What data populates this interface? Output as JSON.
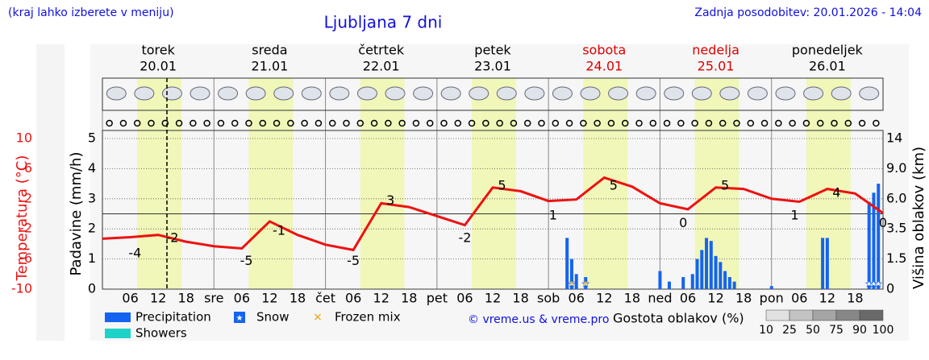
{
  "header": {
    "hint": "(kraj lahko izberete v meniju)",
    "title": "Ljubljana 7 dni",
    "updated": "Zadnja posodobitev: 20.01.2026 - 14:04"
  },
  "chart_data": {
    "type": "meteogram",
    "days": [
      {
        "name": "torek",
        "date": "20.01",
        "weekend": false
      },
      {
        "name": "sreda",
        "date": "21.01",
        "weekend": false
      },
      {
        "name": "četrtek",
        "date": "22.01",
        "weekend": false
      },
      {
        "name": "petek",
        "date": "23.01",
        "weekend": false
      },
      {
        "name": "sobota",
        "date": "24.01",
        "weekend": true
      },
      {
        "name": "nedelja",
        "date": "25.01",
        "weekend": true
      },
      {
        "name": "ponedeljek",
        "date": "26.01",
        "weekend": false
      }
    ],
    "xlim": [
      0,
      168
    ],
    "xticks": [
      {
        "value": 6,
        "label": "06"
      },
      {
        "value": 12,
        "label": "12"
      },
      {
        "value": 18,
        "label": "18"
      },
      {
        "value": 24,
        "label": "sre"
      },
      {
        "value": 30,
        "label": "06"
      },
      {
        "value": 36,
        "label": "12"
      },
      {
        "value": 42,
        "label": "18"
      },
      {
        "value": 48,
        "label": "čet"
      },
      {
        "value": 54,
        "label": "06"
      },
      {
        "value": 60,
        "label": "12"
      },
      {
        "value": 66,
        "label": "18"
      },
      {
        "value": 72,
        "label": "pet"
      },
      {
        "value": 78,
        "label": "06"
      },
      {
        "value": 84,
        "label": "12"
      },
      {
        "value": 90,
        "label": "18"
      },
      {
        "value": 96,
        "label": "sob"
      },
      {
        "value": 102,
        "label": "06"
      },
      {
        "value": 108,
        "label": "12"
      },
      {
        "value": 114,
        "label": "18"
      },
      {
        "value": 120,
        "label": "ned"
      },
      {
        "value": 126,
        "label": "06"
      },
      {
        "value": 132,
        "label": "12"
      },
      {
        "value": 138,
        "label": "18"
      },
      {
        "value": 144,
        "label": "pon"
      },
      {
        "value": 150,
        "label": "06"
      },
      {
        "value": 156,
        "label": "12"
      },
      {
        "value": 162,
        "label": "18"
      }
    ],
    "ylabel": "Padavine (mm/h)",
    "ylim": [
      0,
      5
    ],
    "yticks": [
      0,
      1,
      2,
      3,
      4,
      5
    ],
    "grid": true,
    "temperature": {
      "label": "Temperatura (°C)",
      "color": "#ee1111",
      "ylim": [
        -10,
        10
      ],
      "yticks": [
        10,
        6,
        2,
        -2,
        -6,
        -10
      ],
      "x": [
        0,
        6,
        12,
        18,
        24,
        30,
        36,
        42,
        48,
        54,
        60,
        66,
        72,
        78,
        84,
        90,
        96,
        102,
        108,
        114,
        120,
        126,
        132,
        138,
        144,
        150,
        156,
        162,
        168
      ],
      "values": [
        -3.3,
        -3.1,
        -2.8,
        -3.7,
        -4.3,
        -4.6,
        -1.0,
        -2.8,
        -4.1,
        -4.8,
        1.4,
        0.9,
        -0.3,
        -1.5,
        3.5,
        3.0,
        1.7,
        1.9,
        4.8,
        3.6,
        1.4,
        0.6,
        3.5,
        3.3,
        2.0,
        1.6,
        3.3,
        2.7,
        0.1
      ]
    },
    "extremes": [
      {
        "x": 7,
        "value": -4
      },
      {
        "x": 15,
        "value": -2
      },
      {
        "x": 31,
        "value": -5
      },
      {
        "x": 38,
        "value": -1
      },
      {
        "x": 54,
        "value": -5
      },
      {
        "x": 62,
        "value": 3
      },
      {
        "x": 78,
        "value": -2
      },
      {
        "x": 86,
        "value": 5
      },
      {
        "x": 97,
        "value": 1
      },
      {
        "x": 110,
        "value": 5
      },
      {
        "x": 125,
        "value": 0
      },
      {
        "x": 134,
        "value": 5
      },
      {
        "x": 149,
        "value": 1
      },
      {
        "x": 158,
        "value": 4
      },
      {
        "x": 168,
        "value": 0
      }
    ],
    "cloud_height": {
      "label": "Višina oblakov (km)",
      "ticks": [
        0,
        1.5,
        3.5,
        {
          "value": 6,
          "label": "6.0"
        },
        {
          "value": 9,
          "label": "9.0"
        },
        14
      ]
    },
    "series": [
      {
        "name": "Precipitation",
        "color": "#1464f0",
        "x": [
          100,
          101,
          102,
          104,
          120,
          122,
          125,
          127,
          128,
          129,
          130,
          131,
          132,
          133,
          134,
          135,
          136,
          144,
          155,
          156,
          165,
          166,
          167
        ],
        "values": [
          1.7,
          1.0,
          0.5,
          0.4,
          0.6,
          0.25,
          0.4,
          0.5,
          1.0,
          1.3,
          1.7,
          1.6,
          1.1,
          0.9,
          0.6,
          0.4,
          0.25,
          0.1,
          1.7,
          1.7,
          2.9,
          3.2,
          3.5
        ]
      },
      {
        "name": "Snow",
        "color": "#1464f0",
        "x": [
          101,
          104,
          165,
          166,
          167
        ]
      },
      {
        "name": "Frozen mix",
        "color": "#f0a000",
        "x": [
          101,
          104
        ]
      },
      {
        "name": "Showers",
        "color": "#1ed2c8",
        "x": []
      }
    ],
    "credit": "© vreme.us & vreme.pro",
    "density_legend": {
      "label": "Gostota oblakov (%)",
      "ticks": [
        10,
        25,
        50,
        75,
        90,
        100
      ]
    }
  }
}
